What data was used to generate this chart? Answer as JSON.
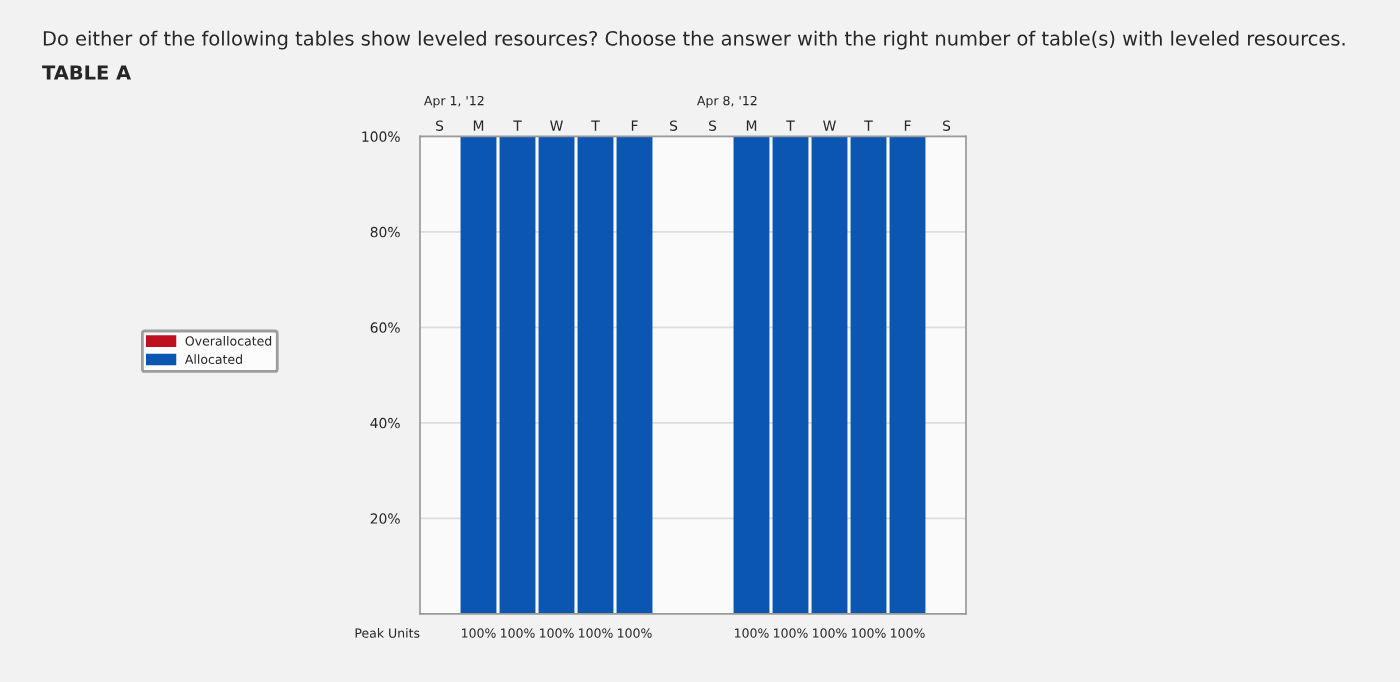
{
  "chart_data": {
    "type": "bar",
    "title": "Do either of the following tables show leveled resources? Choose the answer with the right number of table(s) with leveled resources.",
    "subtitle": "TABLE A",
    "categories": [
      "S",
      "M",
      "T",
      "W",
      "T",
      "F",
      "S",
      "S",
      "M",
      "T",
      "W",
      "T",
      "F",
      "S"
    ],
    "series": [
      {
        "name": "Allocated",
        "color": "#0b56b0",
        "values": [
          0,
          100,
          100,
          100,
          100,
          100,
          0,
          0,
          100,
          100,
          100,
          100,
          100,
          0
        ],
        "value_labels": [
          null,
          "100%",
          "100%",
          "100%",
          "100%",
          "100%",
          null,
          null,
          "100%",
          "100%",
          "100%",
          "100%",
          "100%",
          null
        ]
      },
      {
        "name": "Overallocated",
        "color": "#c0101e",
        "values": [
          0,
          0,
          0,
          0,
          0,
          0,
          0,
          0,
          0,
          0,
          0,
          0,
          0,
          0
        ]
      }
    ],
    "stacked": true,
    "ylim": [
      0,
      100
    ],
    "yticks": [
      {
        "value": 20,
        "label": "20%"
      },
      {
        "value": 40,
        "label": "40%"
      },
      {
        "value": 60,
        "label": "60%"
      },
      {
        "value": 80,
        "label": "80%"
      },
      {
        "value": 100,
        "label": "100%"
      }
    ],
    "grid": "y",
    "legend": "left",
    "annotations": [
      "Peak Units",
      "Apr 1, '12",
      "Apr 8, '12"
    ]
  }
}
